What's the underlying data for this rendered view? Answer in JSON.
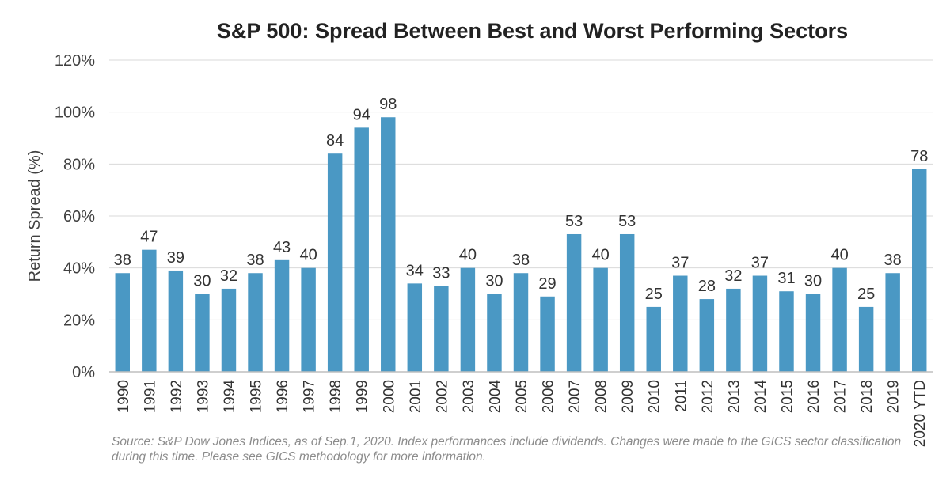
{
  "chart_data": {
    "type": "bar",
    "title": "S&P 500: Spread Between Best and Worst Performing Sectors",
    "xlabel": "",
    "ylabel": "Return Spread (%)",
    "ylim": [
      0,
      120
    ],
    "yticks": [
      "0%",
      "20%",
      "40%",
      "60%",
      "80%",
      "100%",
      "120%"
    ],
    "grid": true,
    "categories": [
      "1990",
      "1991",
      "1992",
      "1993",
      "1994",
      "1995",
      "1996",
      "1997",
      "1998",
      "1999",
      "2000",
      "2001",
      "2002",
      "2003",
      "2004",
      "2005",
      "2006",
      "2007",
      "2008",
      "2009",
      "2010",
      "2011",
      "2012",
      "2013",
      "2014",
      "2015",
      "2016",
      "2017",
      "2018",
      "2019",
      "2020 YTD"
    ],
    "values": [
      38,
      47,
      39,
      30,
      32,
      38,
      43,
      40,
      84,
      94,
      98,
      34,
      33,
      40,
      30,
      38,
      29,
      53,
      40,
      53,
      25,
      37,
      28,
      32,
      37,
      31,
      30,
      40,
      25,
      38,
      78
    ],
    "bar_color": "#4a98c4",
    "source": "Source: S&P Dow Jones Indices, as of Sep.1, 2020. Index performances include dividends. Changes were made to the GICS sector classification during this time. Please see GICS methodology for more information."
  }
}
